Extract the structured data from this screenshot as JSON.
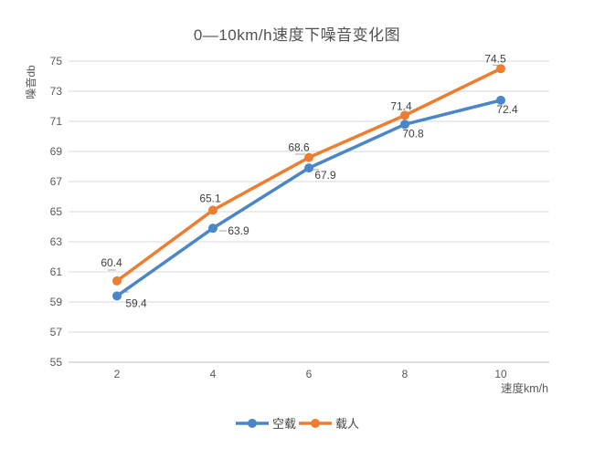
{
  "chart_data": {
    "type": "line",
    "title": "0—10km/h速度下噪音变化图",
    "categories": [
      "2",
      "4",
      "6",
      "8",
      "10"
    ],
    "xlabel": "速度km/h",
    "ylabel": "噪音db",
    "ylim": [
      55,
      75
    ],
    "ytick_step": 2,
    "grid": "horizontal",
    "legend_position": "bottom",
    "series": [
      {
        "name": "空载",
        "color": "#4A86C8",
        "values": [
          59.4,
          63.9,
          67.9,
          70.8,
          72.4
        ]
      },
      {
        "name": "载人",
        "color": "#ED7D31",
        "values": [
          60.4,
          65.1,
          68.6,
          71.4,
          74.5
        ]
      }
    ]
  },
  "style_colors": {
    "grid": "#D9D9D9",
    "axis": "#BFBFBF",
    "tick_text": "#595959",
    "data_label_text": "#3F3F3F",
    "title_text": "#515151",
    "leader_line": "#A6A6A6"
  }
}
